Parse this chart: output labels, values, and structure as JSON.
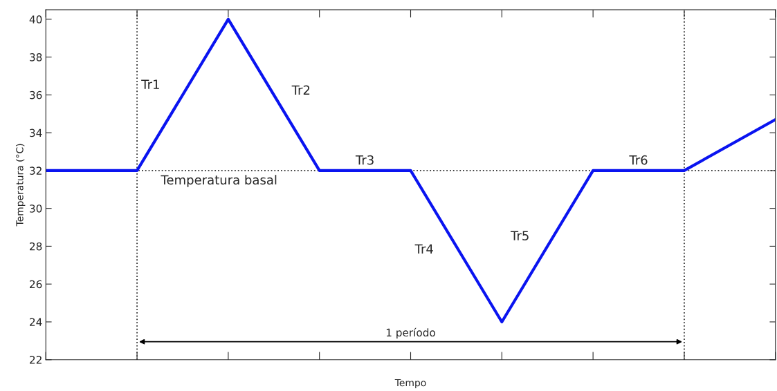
{
  "chart_data": {
    "type": "line",
    "xlabel": "Tempo",
    "ylabel": "Temperatura (°C)",
    "categories": [
      null,
      null,
      null,
      null,
      null,
      null,
      null,
      null,
      null
    ],
    "series": [
      {
        "color": "#0a14f0",
        "values": [
          32,
          32,
          40,
          32,
          32,
          24,
          32,
          32,
          34.7
        ]
      }
    ],
    "ylim": [
      22,
      40.5
    ],
    "yticks": [
      22,
      24,
      26,
      28,
      30,
      32,
      34,
      36,
      38,
      40
    ],
    "tick_labels": "y",
    "grid": false,
    "legend": false,
    "line_style": "solid",
    "marker": "none",
    "ref_lines": [
      {
        "axis": "y",
        "value": 32,
        "label": "Temperatura basal",
        "color": "#333333",
        "line_style": "dotted"
      }
    ],
    "annotations": [
      "Tr1",
      "Tr2",
      "Tr3",
      "Tr4",
      "Tr5",
      "Tr6",
      "1 período"
    ]
  }
}
